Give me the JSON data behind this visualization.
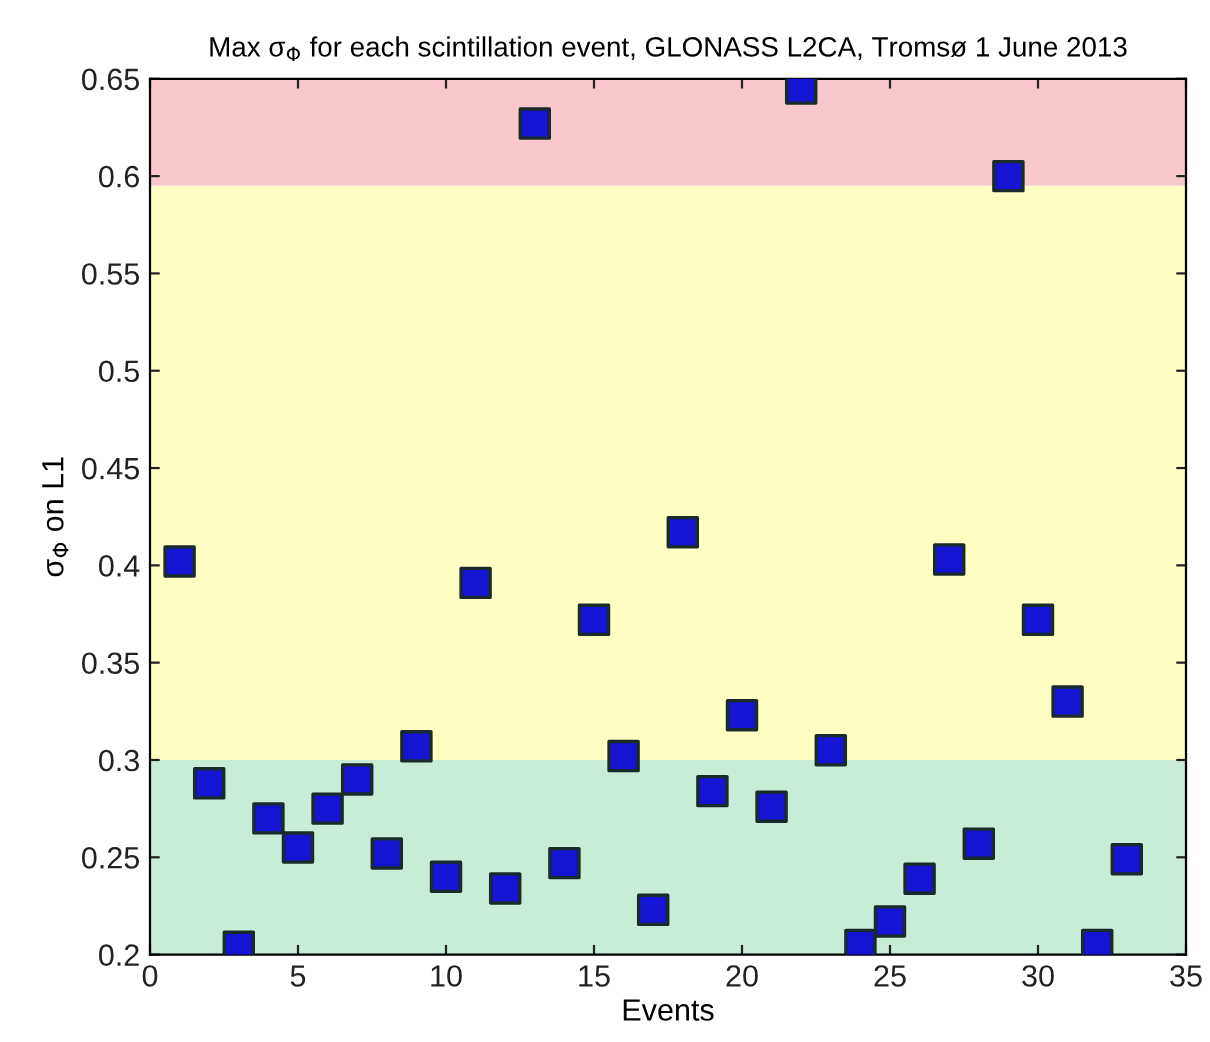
{
  "chart_data": {
    "type": "scatter",
    "title": "Max σ$_{Φ}$ for each scintillation event, GLONASS L2CA, Tromsø 1 June 2013",
    "xlabel": "Events",
    "ylabel": "σ$_{Φ}$ on L1",
    "x": [
      1,
      2,
      3,
      4,
      5,
      6,
      7,
      8,
      9,
      10,
      11,
      12,
      13,
      14,
      15,
      16,
      17,
      18,
      19,
      20,
      21,
      22,
      23,
      24,
      25,
      26,
      27,
      28,
      29,
      30,
      31,
      32,
      33
    ],
    "series": [
      {
        "color": "#1414d2",
        "values": [
          0.402,
          0.288,
          0.204,
          0.27,
          0.255,
          0.275,
          0.29,
          0.252,
          0.307,
          0.24,
          0.391,
          0.234,
          0.627,
          0.247,
          0.372,
          0.302,
          0.223,
          0.417,
          0.284,
          0.323,
          0.276,
          0.645,
          0.305,
          0.205,
          0.217,
          0.239,
          0.403,
          0.257,
          0.6,
          0.372,
          0.33,
          0.205,
          0.249
        ]
      }
    ],
    "marker": "square",
    "xlim": [
      0,
      35
    ],
    "xticks": [
      0,
      5,
      10,
      15,
      20,
      25,
      30,
      35
    ],
    "ylim": [
      0.2,
      0.65
    ],
    "yticks": [
      0.2,
      0.25,
      0.3,
      0.35,
      0.4,
      0.45,
      0.5,
      0.55,
      0.6,
      0.65
    ],
    "bands": [
      {
        "axis": "y",
        "from": 0.2,
        "to": 0.3,
        "color": "#c8ecd6"
      },
      {
        "axis": "y",
        "from": 0.3,
        "to": 0.595,
        "color": "#ffffc4"
      },
      {
        "axis": "y",
        "from": 0.595,
        "to": 0.65,
        "color": "#f8c8cc"
      }
    ],
    "grid": false,
    "legend": false
  }
}
